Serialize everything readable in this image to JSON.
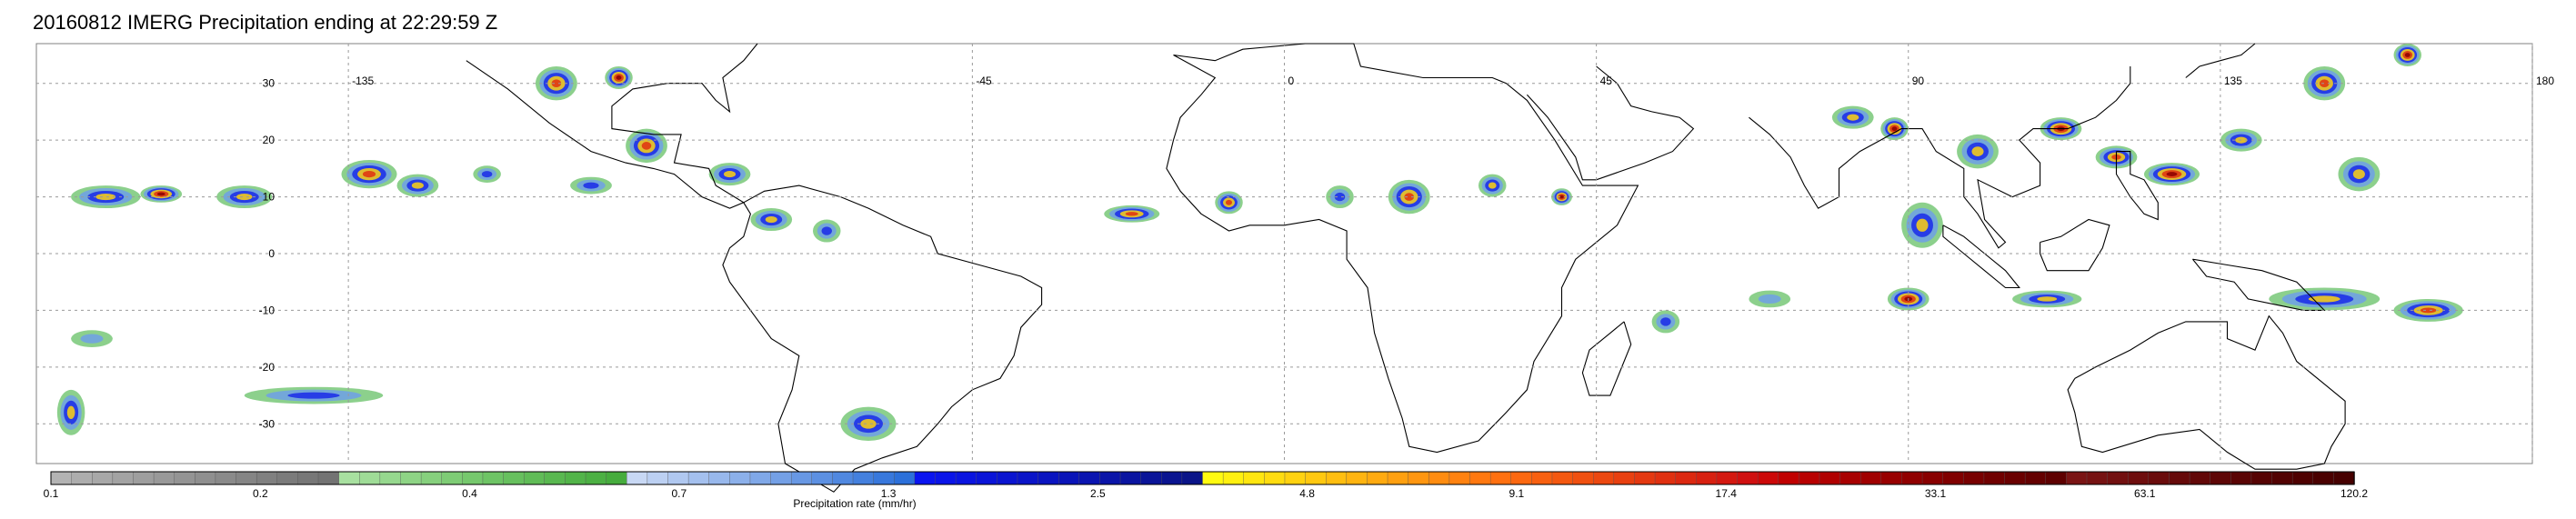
{
  "title": "20160812 IMERG Precipitation ending at 22:29:59 Z",
  "map": {
    "lon_range": [
      -180,
      180
    ],
    "lat_range": [
      -37,
      37
    ],
    "lon_ticks": [
      -135,
      -45,
      0,
      45,
      90,
      135,
      180
    ],
    "lon_tick_labels": [
      "-135",
      "-45",
      "0",
      "45",
      "90",
      "135",
      "180"
    ],
    "lat_ticks": [
      30,
      20,
      10,
      0,
      -10,
      -20,
      -30
    ],
    "lat_tick_labels": [
      "30",
      "20",
      "10",
      "0",
      "-10",
      "-20",
      "-30"
    ],
    "grid": true,
    "coastline_color": "#000000"
  },
  "colorbar": {
    "title": "Precipitation rate (mm/hr)",
    "labels": [
      "0.1",
      "0.2",
      "0.4",
      "0.7",
      "1.3",
      "2.5",
      "4.8",
      "9.1",
      "17.4",
      "33.1",
      "63.1",
      "120.2"
    ],
    "colors": [
      "#b3b3b3",
      "#adadad",
      "#a8a8a8",
      "#a3a3a3",
      "#9e9e9e",
      "#999999",
      "#949494",
      "#8f8f8f",
      "#8a8a8a",
      "#858585",
      "#808080",
      "#7b7b7b",
      "#777777",
      "#737373",
      "#a8e0a0",
      "#9fdc97",
      "#96d88e",
      "#8ed485",
      "#86d07d",
      "#7ecc75",
      "#76c86d",
      "#6ec465",
      "#67c05e",
      "#60bc57",
      "#59b850",
      "#52b449",
      "#4cb043",
      "#46ac3d",
      "#c8d8f4",
      "#bcd0f2",
      "#b0c8f0",
      "#a4c0ee",
      "#98b8ec",
      "#8cb0ea",
      "#80a8e8",
      "#74a0e6",
      "#6898e4",
      "#5c90e2",
      "#5088e0",
      "#4480de",
      "#3878dc",
      "#2c70da",
      "#0a14f0",
      "#0a14e8",
      "#0a14e0",
      "#0a14d8",
      "#0a14d0",
      "#0a14c8",
      "#0a14c0",
      "#0a14b8",
      "#0a14b0",
      "#0a14a8",
      "#0a14a0",
      "#0a1498",
      "#0a1490",
      "#0a1488",
      "#fffa10",
      "#fff010",
      "#ffe610",
      "#ffdc10",
      "#ffd210",
      "#ffc810",
      "#ffbe10",
      "#ffb410",
      "#ffaa10",
      "#ffa010",
      "#ff9610",
      "#ff8c10",
      "#ff8210",
      "#ff7810",
      "#ff7010",
      "#fc6810",
      "#f86010",
      "#f45810",
      "#f05010",
      "#ec4810",
      "#e84010",
      "#e43810",
      "#e03010",
      "#dc2810",
      "#d82010",
      "#d41810",
      "#d01010",
      "#cc0808",
      "#c00000",
      "#b80000",
      "#b00000",
      "#a80000",
      "#a00000",
      "#980000",
      "#900000",
      "#880000",
      "#800000",
      "#780000",
      "#700000",
      "#6a0000",
      "#640000",
      "#5e0000",
      "#7a1414",
      "#761212",
      "#721010",
      "#6e0e0e",
      "#6a0c0c",
      "#660a0a",
      "#620808",
      "#5e0606",
      "#5a0404",
      "#560303",
      "#520202",
      "#4e0101",
      "#4a0000",
      "#460000"
    ]
  },
  "precip_cells": [
    {
      "lon": -170,
      "lat": 10,
      "rx": 5,
      "ry": 2,
      "level": 3
    },
    {
      "lon": -162,
      "lat": 10.5,
      "rx": 3,
      "ry": 1.5,
      "level": 5
    },
    {
      "lon": -150,
      "lat": 10,
      "rx": 4,
      "ry": 2,
      "level": 3
    },
    {
      "lon": -132,
      "lat": 14,
      "rx": 4,
      "ry": 2.5,
      "level": 4
    },
    {
      "lon": -125,
      "lat": 12,
      "rx": 3,
      "ry": 2,
      "level": 3
    },
    {
      "lon": -115,
      "lat": 14,
      "rx": 2,
      "ry": 1.5,
      "level": 2
    },
    {
      "lon": -105,
      "lat": 30,
      "rx": 3,
      "ry": 3,
      "level": 4
    },
    {
      "lon": -96,
      "lat": 31,
      "rx": 2,
      "ry": 2,
      "level": 5
    },
    {
      "lon": -92,
      "lat": 19,
      "rx": 3,
      "ry": 3,
      "level": 4
    },
    {
      "lon": -80,
      "lat": 14,
      "rx": 3,
      "ry": 2,
      "level": 3
    },
    {
      "lon": -74,
      "lat": 6,
      "rx": 3,
      "ry": 2,
      "level": 3
    },
    {
      "lon": -66,
      "lat": 4,
      "rx": 2,
      "ry": 2,
      "level": 2
    },
    {
      "lon": -22,
      "lat": 7,
      "rx": 4,
      "ry": 1.5,
      "level": 4
    },
    {
      "lon": -8,
      "lat": 9,
      "rx": 2,
      "ry": 2,
      "level": 4
    },
    {
      "lon": 8,
      "lat": 10,
      "rx": 2,
      "ry": 2,
      "level": 2
    },
    {
      "lon": 18,
      "lat": 10,
      "rx": 3,
      "ry": 3,
      "level": 4
    },
    {
      "lon": 30,
      "lat": 12,
      "rx": 2,
      "ry": 2,
      "level": 3
    },
    {
      "lon": 40,
      "lat": 10,
      "rx": 1.5,
      "ry": 1.5,
      "level": 5
    },
    {
      "lon": 82,
      "lat": 24,
      "rx": 3,
      "ry": 2,
      "level": 3
    },
    {
      "lon": 88,
      "lat": 22,
      "rx": 2,
      "ry": 2,
      "level": 5
    },
    {
      "lon": 92,
      "lat": 5,
      "rx": 3,
      "ry": 4,
      "level": 3
    },
    {
      "lon": 90,
      "lat": -8,
      "rx": 3,
      "ry": 2,
      "level": 5
    },
    {
      "lon": 100,
      "lat": 18,
      "rx": 3,
      "ry": 3,
      "level": 3
    },
    {
      "lon": 112,
      "lat": 22,
      "rx": 3,
      "ry": 2,
      "level": 5
    },
    {
      "lon": 120,
      "lat": 17,
      "rx": 3,
      "ry": 2,
      "level": 4
    },
    {
      "lon": 128,
      "lat": 14,
      "rx": 4,
      "ry": 2,
      "level": 5
    },
    {
      "lon": 138,
      "lat": 20,
      "rx": 3,
      "ry": 2,
      "level": 3
    },
    {
      "lon": 150,
      "lat": 30,
      "rx": 3,
      "ry": 3,
      "level": 4
    },
    {
      "lon": 155,
      "lat": 14,
      "rx": 3,
      "ry": 3,
      "level": 3
    },
    {
      "lon": 162,
      "lat": 35,
      "rx": 2,
      "ry": 2,
      "level": 5
    },
    {
      "lon": 150,
      "lat": -8,
      "rx": 8,
      "ry": 2,
      "level": 3
    },
    {
      "lon": 165,
      "lat": -10,
      "rx": 5,
      "ry": 2,
      "level": 4
    },
    {
      "lon": 110,
      "lat": -8,
      "rx": 5,
      "ry": 1.5,
      "level": 3
    },
    {
      "lon": -60,
      "lat": -30,
      "rx": 4,
      "ry": 3,
      "level": 3
    },
    {
      "lon": -140,
      "lat": -25,
      "rx": 10,
      "ry": 1.5,
      "level": 2
    },
    {
      "lon": -175,
      "lat": -28,
      "rx": 2,
      "ry": 4,
      "level": 3
    },
    {
      "lon": -172,
      "lat": -15,
      "rx": 3,
      "ry": 1.5,
      "level": 1
    },
    {
      "lon": 55,
      "lat": -12,
      "rx": 2,
      "ry": 2,
      "level": 2
    },
    {
      "lon": 70,
      "lat": -8,
      "rx": 3,
      "ry": 1.5,
      "level": 1
    },
    {
      "lon": -100,
      "lat": 12,
      "rx": 3,
      "ry": 1.5,
      "level": 2
    }
  ]
}
